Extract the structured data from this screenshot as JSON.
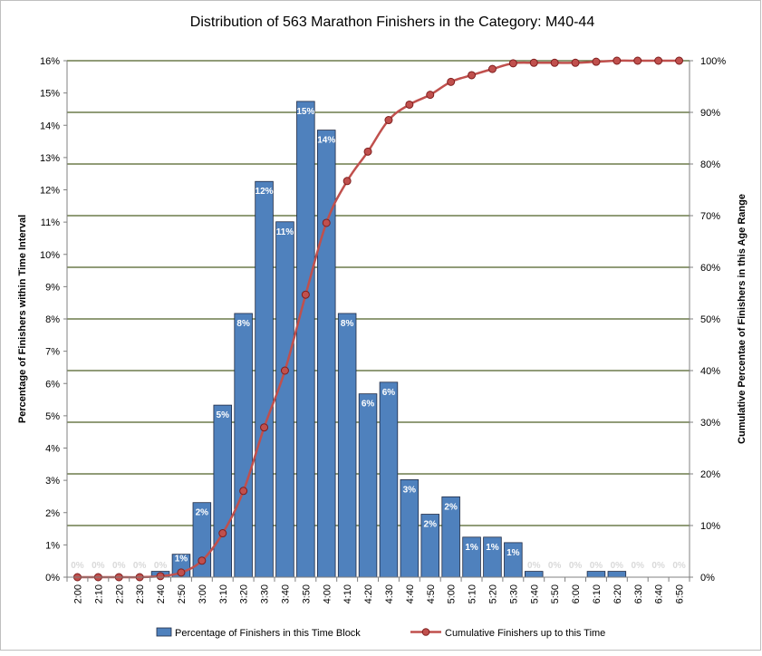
{
  "chart_data": {
    "type": "bar",
    "title": "Distribution of 563 Marathon Finishers in the Category: M40-44",
    "xlabel": "",
    "ylabel": "Percentage of Finishers within Time Interval",
    "y2label": "Cumulative Percentae of Finishers in this Age Range",
    "ylim": [
      0,
      16
    ],
    "y2lim": [
      0,
      100
    ],
    "y_ticks": [
      "0%",
      "1%",
      "2%",
      "3%",
      "4%",
      "5%",
      "6%",
      "7%",
      "8%",
      "9%",
      "10%",
      "11%",
      "12%",
      "13%",
      "14%",
      "15%",
      "16%"
    ],
    "y2_ticks": [
      "0%",
      "10%",
      "20%",
      "30%",
      "40%",
      "50%",
      "60%",
      "70%",
      "80%",
      "90%",
      "100%"
    ],
    "grid": true,
    "legend_position": "bottom",
    "categories": [
      "2:00",
      "2:10",
      "2:20",
      "2:30",
      "2:40",
      "2:50",
      "3:00",
      "3:10",
      "3:20",
      "3:30",
      "3:40",
      "3:50",
      "4:00",
      "4:10",
      "4:20",
      "4:30",
      "4:40",
      "4:50",
      "5:00",
      "5:10",
      "5:20",
      "5:30",
      "5:40",
      "5:50",
      "6:00",
      "6:10",
      "6:20",
      "6:30",
      "6:40",
      "6:50"
    ],
    "series": [
      {
        "name": "Percentage of Finishers in this Time Block",
        "kind": "bar",
        "color": "#4F81BD",
        "values": [
          0,
          0,
          0,
          0,
          0.18,
          0.71,
          2.31,
          5.33,
          8.17,
          12.26,
          11.01,
          14.74,
          13.85,
          8.17,
          5.68,
          6.04,
          3.02,
          1.95,
          2.49,
          1.24,
          1.24,
          1.07,
          0.18,
          0,
          0,
          0.18,
          0.18,
          0,
          0,
          0
        ],
        "data_labels": [
          "0%",
          "0%",
          "0%",
          "0%",
          "0%",
          "1%",
          "2%",
          "5%",
          "8%",
          "12%",
          "11%",
          "15%",
          "14%",
          "8%",
          "6%",
          "6%",
          "3%",
          "2%",
          "2%",
          "1%",
          "1%",
          "1%",
          "0%",
          "0%",
          "0%",
          "0%",
          "0%",
          "0%",
          "0%",
          "0%"
        ]
      },
      {
        "name": "Cumulative Finishers up to this Time",
        "kind": "line",
        "axis": "right",
        "color": "#C0504D",
        "values": [
          0,
          0,
          0,
          0,
          0.2,
          0.9,
          3.2,
          8.5,
          16.7,
          29.0,
          40.0,
          54.7,
          68.6,
          76.7,
          82.4,
          88.5,
          91.5,
          93.4,
          95.9,
          97.2,
          98.4,
          99.5,
          99.6,
          99.6,
          99.6,
          99.8,
          100,
          100,
          100,
          100
        ]
      }
    ]
  },
  "colors": {
    "bar_fill": "#4F81BD",
    "bar_stroke": "#1F2A44",
    "line": "#C0504D",
    "marker_fill": "#C0504D",
    "grid": "#4F6228",
    "bar_label": "#FFFFFF",
    "zero_label": "#D9D9D9"
  }
}
